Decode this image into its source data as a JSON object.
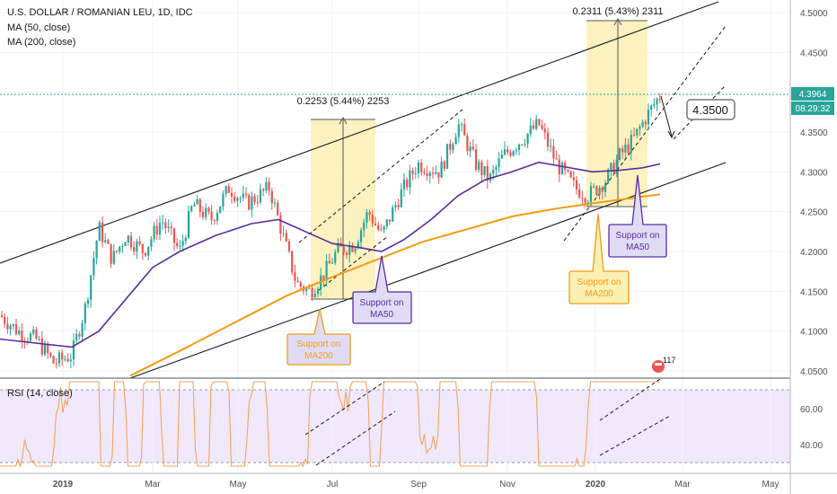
{
  "chart_data": [
    {
      "type": "candlestick",
      "title": "U.S. DOLLAR / ROMANIAN LEU, 1D, IDC",
      "indicators": [
        "MA (50, close)",
        "MA (200, close)"
      ],
      "x_ticks": [
        "2019",
        "Mar",
        "May",
        "Jul",
        "Sep",
        "Nov",
        "2020",
        "Mar",
        "May"
      ],
      "y_ticks": [
        "4.5000",
        "4.4500",
        "4.4000",
        "4.3500",
        "4.3000",
        "4.2500",
        "4.2000",
        "4.1500",
        "4.1000",
        "4.0500"
      ],
      "ylim": [
        4.04,
        4.51
      ],
      "last_price": "4.3964",
      "countdown": "08:29:32",
      "target_price": "4.3500",
      "series": [
        {
          "name": "MA (50, close)",
          "color": "#5b2c9f"
        },
        {
          "name": "MA (200, close)",
          "color": "#f39c12"
        }
      ],
      "annotations": {
        "range_1": "0.2253 (5.44%) 2253",
        "range_2": "0.2311 (5.43%) 2311",
        "support_ma200_1": [
          "Support on",
          "MA200"
        ],
        "support_ma50_1": [
          "Support on",
          "MA50"
        ],
        "support_ma200_2": [
          "Support on",
          "MA200"
        ],
        "support_ma50_2": [
          "Support on",
          "MA50"
        ],
        "events_count": "117"
      },
      "colors": {
        "up": "#26a69a",
        "down": "#ef5350",
        "ma50": "#5b2c9f",
        "ma200": "#f39c12",
        "highlight": "#fbf0b4"
      }
    },
    {
      "type": "line",
      "title": "RSI (14, close)",
      "y_ticks": [
        "60.00",
        "40.00"
      ],
      "ylim": [
        26,
        78
      ],
      "series": [
        {
          "name": "RSI (14, close)",
          "color": "#f5a35f"
        }
      ],
      "overbought": 70,
      "oversold": 30
    }
  ]
}
